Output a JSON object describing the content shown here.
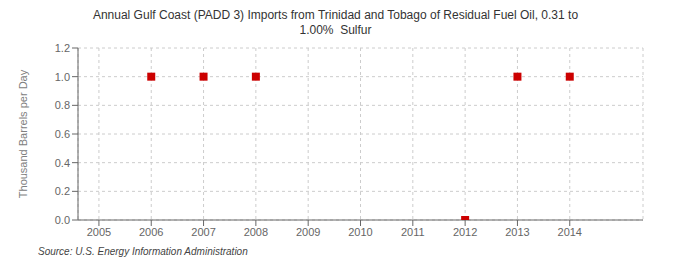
{
  "chart_data": {
    "type": "scatter",
    "title": "Annual Gulf Coast (PADD 3) Imports from Trinidad and Tobago of Residual Fuel Oil, 0.31 to\n1.00%  Sulfur",
    "y_label": "Thousand Barrels per Day",
    "annotations": [
      "Source: U.S. Energy Information Administration"
    ],
    "x": [
      2006,
      2007,
      2008,
      2012,
      2013,
      2014
    ],
    "values": [
      1.0,
      1.0,
      1.0,
      0.0,
      1.0,
      1.0
    ],
    "color": "#cc0000",
    "marker": "square",
    "xlim": [
      2004.6,
      2015.4
    ],
    "ylim": [
      0.0,
      1.2
    ],
    "xticks": [
      2005,
      2006,
      2007,
      2008,
      2009,
      2010,
      2011,
      2012,
      2013,
      2014
    ],
    "yticks": [
      {
        "value": 0.0,
        "label": "0.0"
      },
      0.2,
      0.4,
      0.6,
      0.8,
      {
        "value": 1.0,
        "label": "1.0"
      },
      1.2
    ],
    "grid": true
  }
}
